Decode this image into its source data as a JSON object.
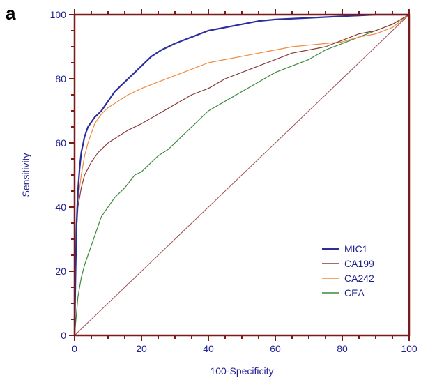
{
  "figure": {
    "panel_letter": "a"
  },
  "chart_data": {
    "type": "line",
    "xlabel": "100-Specificity",
    "ylabel": "Sensitivity",
    "xlim": [
      0,
      100
    ],
    "ylim": [
      0,
      100
    ],
    "x_ticks": [
      "0",
      "20",
      "40",
      "60",
      "80",
      "100"
    ],
    "y_ticks": [
      "0",
      "20",
      "40",
      "60",
      "80",
      "100"
    ],
    "grid": false,
    "legend_position": "bottom-right",
    "axis_color": "#7a1a1a",
    "reference_line": {
      "color": "#a05050",
      "points": [
        [
          0,
          0
        ],
        [
          100,
          100
        ]
      ]
    },
    "series": [
      {
        "name": "MIC1",
        "color": "#2b2f9c",
        "points": [
          [
            0,
            0
          ],
          [
            0.3,
            20
          ],
          [
            0.6,
            35
          ],
          [
            1,
            45
          ],
          [
            1.5,
            52
          ],
          [
            2,
            57
          ],
          [
            3,
            62
          ],
          [
            4,
            65
          ],
          [
            6,
            68
          ],
          [
            8,
            70
          ],
          [
            10,
            73
          ],
          [
            12,
            76
          ],
          [
            15,
            79
          ],
          [
            18,
            82
          ],
          [
            20,
            84
          ],
          [
            23,
            87
          ],
          [
            26,
            89
          ],
          [
            30,
            91
          ],
          [
            35,
            93
          ],
          [
            40,
            95
          ],
          [
            45,
            96
          ],
          [
            50,
            97
          ],
          [
            55,
            98
          ],
          [
            60,
            98.5
          ],
          [
            70,
            99
          ],
          [
            80,
            99.5
          ],
          [
            90,
            100
          ],
          [
            100,
            100
          ]
        ]
      },
      {
        "name": "CA199",
        "color": "#8b3a3a",
        "points": [
          [
            0,
            0
          ],
          [
            0.3,
            20
          ],
          [
            0.6,
            33
          ],
          [
            1,
            40
          ],
          [
            2,
            46
          ],
          [
            3,
            50
          ],
          [
            5,
            54
          ],
          [
            7,
            57
          ],
          [
            10,
            60
          ],
          [
            13,
            62
          ],
          [
            16,
            64
          ],
          [
            20,
            66
          ],
          [
            25,
            69
          ],
          [
            30,
            72
          ],
          [
            35,
            75
          ],
          [
            40,
            77
          ],
          [
            45,
            80
          ],
          [
            50,
            82
          ],
          [
            55,
            84
          ],
          [
            60,
            86
          ],
          [
            65,
            88
          ],
          [
            70,
            89
          ],
          [
            75,
            90
          ],
          [
            80,
            92
          ],
          [
            85,
            94
          ],
          [
            90,
            95
          ],
          [
            95,
            97
          ],
          [
            100,
            100
          ]
        ]
      },
      {
        "name": "CA242",
        "color": "#f08a3c",
        "points": [
          [
            0,
            0
          ],
          [
            0.3,
            20
          ],
          [
            0.6,
            32
          ],
          [
            1,
            42
          ],
          [
            2,
            50
          ],
          [
            3,
            56
          ],
          [
            4,
            60
          ],
          [
            5,
            63
          ],
          [
            6,
            66
          ],
          [
            8,
            69
          ],
          [
            10,
            71
          ],
          [
            13,
            73
          ],
          [
            16,
            75
          ],
          [
            20,
            77
          ],
          [
            25,
            79
          ],
          [
            30,
            81
          ],
          [
            35,
            83
          ],
          [
            40,
            85
          ],
          [
            45,
            86
          ],
          [
            50,
            87
          ],
          [
            55,
            88
          ],
          [
            60,
            89
          ],
          [
            65,
            90
          ],
          [
            70,
            90.5
          ],
          [
            75,
            91
          ],
          [
            80,
            91.5
          ],
          [
            85,
            93
          ],
          [
            90,
            94
          ],
          [
            95,
            96
          ],
          [
            100,
            100
          ]
        ]
      },
      {
        "name": "CEA",
        "color": "#3a8a3a",
        "points": [
          [
            0,
            0
          ],
          [
            0.5,
            6
          ],
          [
            1,
            12
          ],
          [
            2,
            18
          ],
          [
            3,
            22
          ],
          [
            4,
            25
          ],
          [
            5,
            28
          ],
          [
            6,
            31
          ],
          [
            7,
            34
          ],
          [
            8,
            37
          ],
          [
            10,
            40
          ],
          [
            12,
            43
          ],
          [
            15,
            46
          ],
          [
            18,
            50
          ],
          [
            20,
            51
          ],
          [
            22,
            53
          ],
          [
            25,
            56
          ],
          [
            28,
            58
          ],
          [
            30,
            60
          ],
          [
            33,
            63
          ],
          [
            36,
            66
          ],
          [
            40,
            70
          ],
          [
            45,
            73
          ],
          [
            50,
            76
          ],
          [
            55,
            79
          ],
          [
            60,
            82
          ],
          [
            65,
            84
          ],
          [
            70,
            86
          ],
          [
            75,
            89
          ],
          [
            80,
            91
          ],
          [
            85,
            93
          ],
          [
            90,
            95
          ],
          [
            95,
            97
          ],
          [
            100,
            100
          ]
        ]
      }
    ]
  }
}
